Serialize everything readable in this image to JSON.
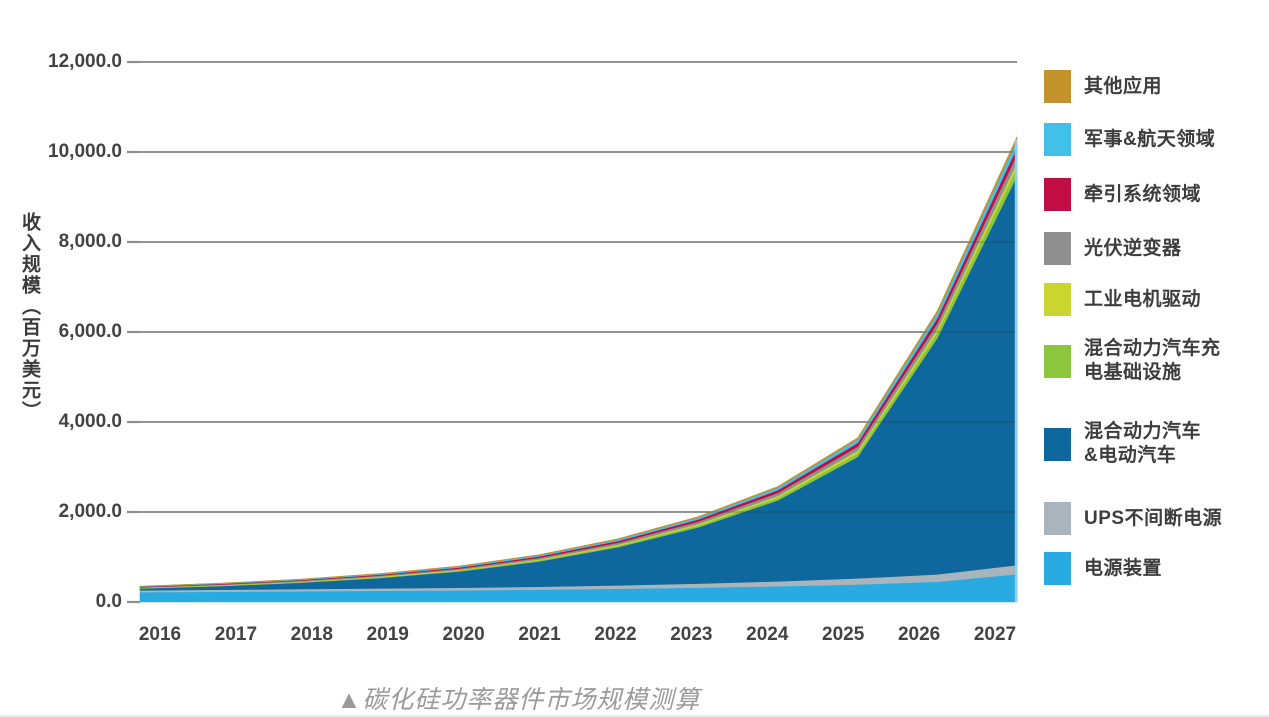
{
  "figure": {
    "caption": "▲碳化硅功率器件市场规模测算"
  },
  "chart_data": {
    "type": "area",
    "stacked": true,
    "title": "",
    "caption": "▲碳化硅功率器件市场规模测算",
    "xlabel": "",
    "ylabel": "收入规模（百万美元）",
    "ylim": [
      0,
      12000
    ],
    "grid": true,
    "grid_color": "#8e8e8e",
    "legend_position": "right",
    "categories": [
      "2016",
      "2017",
      "2018",
      "2019",
      "2020",
      "2021",
      "2022",
      "2023",
      "2024",
      "2025",
      "2026",
      "2027"
    ],
    "y_ticks": [
      {
        "value": 0,
        "label": "0.0"
      },
      {
        "value": 2000,
        "label": "2,000.0"
      },
      {
        "value": 4000,
        "label": "4,000.0"
      },
      {
        "value": 6000,
        "label": "6,000.0"
      },
      {
        "value": 8000,
        "label": "8,000.0"
      },
      {
        "value": 10000,
        "label": "10,000.0"
      },
      {
        "value": 12000,
        "label": "12,000.0"
      }
    ],
    "series": [
      {
        "id": "power-supply",
        "name": "电源装置",
        "color": "#29abe2",
        "values": [
          220,
          230,
          240,
          250,
          260,
          275,
          295,
          320,
          350,
          390,
          450,
          620
        ]
      },
      {
        "id": "ups",
        "name": "UPS不间断电源",
        "color": "#aab4bd",
        "values": [
          40,
          44,
          48,
          53,
          58,
          65,
          75,
          90,
          110,
          135,
          165,
          200
        ]
      },
      {
        "id": "hev-ev",
        "name": "混合动力汽车&电动汽车",
        "color": "#0f689d",
        "values": [
          40,
          80,
          140,
          230,
          360,
          560,
          850,
          1250,
          1800,
          2700,
          5250,
          8650
        ]
      },
      {
        "id": "hev-charging-infra",
        "name": "混合动力汽车充电基础设施",
        "color": "#8cc63f",
        "values": [
          8,
          10,
          13,
          16,
          20,
          25,
          32,
          42,
          56,
          80,
          125,
          185
        ]
      },
      {
        "id": "industrial-motor-drive",
        "name": "工业电机驱动",
        "color": "#cbd530",
        "values": [
          7,
          9,
          11,
          14,
          17,
          21,
          26,
          33,
          43,
          58,
          80,
          115
        ]
      },
      {
        "id": "pv-inverter",
        "name": "光伏逆变器",
        "color": "#8f8f8f",
        "values": [
          14,
          17,
          20,
          24,
          29,
          35,
          43,
          53,
          67,
          90,
          125,
          175
        ]
      },
      {
        "id": "traction-systems",
        "name": "牵引系统领域",
        "color": "#c20c44",
        "values": [
          11,
          13,
          16,
          20,
          24,
          30,
          37,
          47,
          60,
          80,
          110,
          155
        ]
      },
      {
        "id": "military-aerospace",
        "name": "军事&航天领域",
        "color": "#41c0e8",
        "values": [
          9,
          11,
          14,
          17,
          21,
          26,
          33,
          42,
          55,
          78,
          115,
          165
        ]
      },
      {
        "id": "other-apps",
        "name": "其他应用",
        "color": "#c2922b",
        "values": [
          4,
          5,
          6,
          8,
          10,
          13,
          16,
          20,
          26,
          36,
          52,
          75
        ]
      }
    ],
    "legend": [
      {
        "id": "other-apps",
        "label": "其他应用",
        "color": "#c2922b"
      },
      {
        "id": "military-aerospace",
        "label": "军事&航天领域",
        "color": "#41c0e8"
      },
      {
        "id": "traction-systems",
        "label": "牵引系统领域",
        "color": "#c20c44"
      },
      {
        "id": "pv-inverter",
        "label": "光伏逆变器",
        "color": "#8f8f8f"
      },
      {
        "id": "industrial-motor-drive",
        "label": "工业电机驱动",
        "color": "#cbd530"
      },
      {
        "id": "hev-charging-infra",
        "label": "混合动力汽车充\n电基础设施",
        "color": "#8cc63f"
      },
      {
        "id": "hev-ev",
        "label": "混合动力汽车\n&电动汽车",
        "color": "#0f689d"
      },
      {
        "id": "ups",
        "label": "UPS不间断电源",
        "color": "#aab4bd"
      },
      {
        "id": "power-supply",
        "label": "电源装置",
        "color": "#29abe2"
      }
    ]
  }
}
